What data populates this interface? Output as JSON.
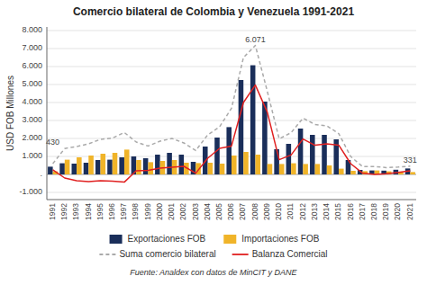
{
  "chart_data": {
    "type": "bar",
    "title": "Comercio bilateral de Colombia y Venezuela 1991-2021",
    "y_label": "USD FOB Millones",
    "source": "Fuente: Analdex con datos de MinCIT y DANE",
    "categories": [
      1991,
      1992,
      1993,
      1994,
      1995,
      1996,
      1997,
      1998,
      1999,
      2000,
      2001,
      2002,
      2003,
      2004,
      2005,
      2006,
      2007,
      2008,
      2009,
      2010,
      2011,
      2012,
      2013,
      2014,
      2015,
      2016,
      2017,
      2018,
      2019,
      2020,
      2021
    ],
    "series": [
      {
        "name": "Exportaciones FOB",
        "type": "bar",
        "color": "#1a2e5a",
        "values": [
          430,
          620,
          600,
          650,
          800,
          820,
          950,
          1000,
          900,
          1100,
          1200,
          1100,
          700,
          1550,
          2050,
          2630,
          5250,
          6071,
          4050,
          1400,
          1700,
          2550,
          2200,
          2200,
          1950,
          800,
          250,
          220,
          210,
          260,
          331
        ]
      },
      {
        "name": "Importaciones FOB",
        "type": "bar",
        "color": "#f0b429",
        "values": [
          170,
          820,
          950,
          1050,
          1150,
          1200,
          1380,
          800,
          680,
          750,
          800,
          650,
          630,
          650,
          600,
          1050,
          1250,
          1100,
          580,
          580,
          620,
          580,
          580,
          500,
          320,
          200,
          180,
          220,
          170,
          150,
          130
        ]
      },
      {
        "name": "Suma comercio bilateral",
        "type": "line",
        "color": "#aaaaaa",
        "line_style": "dashed",
        "values": [
          600,
          1440,
          1550,
          1700,
          1950,
          2020,
          2330,
          1800,
          1580,
          1850,
          2000,
          1750,
          1330,
          2200,
          2650,
          3680,
          6500,
          7171,
          4630,
          1980,
          2320,
          3130,
          2780,
          2700,
          2270,
          1000,
          430,
          440,
          380,
          410,
          461
        ]
      },
      {
        "name": "Balanza Comercial",
        "type": "line",
        "color": "#e02020",
        "line_style": "solid",
        "values": [
          260,
          -200,
          -350,
          -400,
          -350,
          -380,
          -430,
          200,
          220,
          350,
          400,
          450,
          70,
          900,
          1450,
          1580,
          4000,
          4971,
          3470,
          820,
          1080,
          1970,
          1620,
          1700,
          1630,
          600,
          70,
          0,
          40,
          110,
          201
        ]
      }
    ],
    "annotations": [
      {
        "text": "430",
        "x": 1991,
        "y": 430
      },
      {
        "text": "6.071",
        "x": 2008,
        "y": 6071
      },
      {
        "text": "331",
        "x": 2021,
        "y": 331
      }
    ],
    "ylim": [
      -1400,
      8200
    ],
    "yticks": [
      {
        "value": -1000,
        "label": "-1.000"
      },
      {
        "value": 0,
        "label": "."
      },
      {
        "value": 1000,
        "label": "1.000"
      },
      {
        "value": 2000,
        "label": "2.000"
      },
      {
        "value": 3000,
        "label": "3.000"
      },
      {
        "value": 4000,
        "label": "4.000"
      },
      {
        "value": 5000,
        "label": "5.000"
      },
      {
        "value": 6000,
        "label": "6.000"
      },
      {
        "value": 7000,
        "label": "7.000"
      },
      {
        "value": 8000,
        "label": "8.000"
      }
    ],
    "grid": true,
    "legend": "bottom"
  }
}
